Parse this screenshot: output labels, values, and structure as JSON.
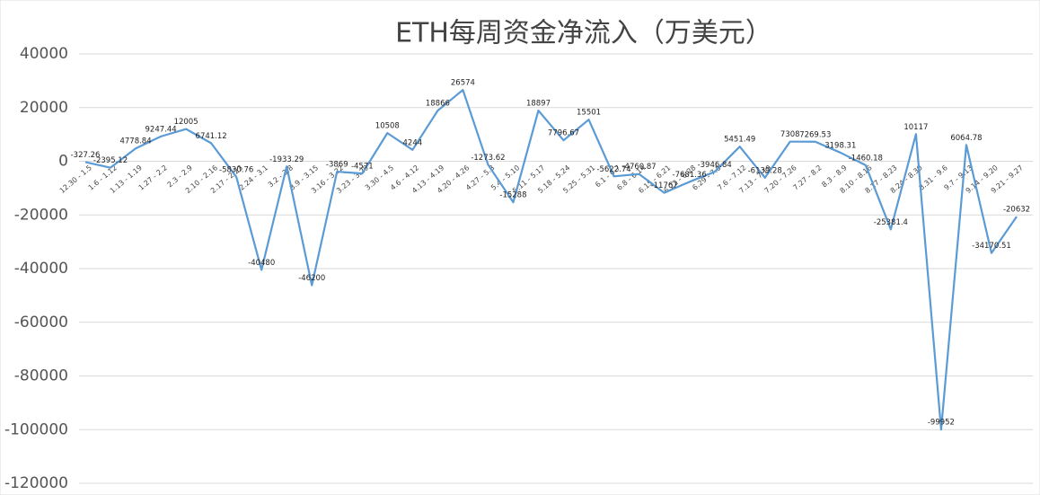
{
  "chart_data": {
    "type": "line",
    "title": "ETH每周资金净流入（万美元）",
    "categories": [
      "12.30 - 1.5",
      "1.6 - 1.12",
      "1.13 - 1.19",
      "1.27 - 2.2",
      "2.3 - 2.9",
      "2.10 - 2.16",
      "2.17 - 2.23",
      "2.24 - 3.1",
      "3.2 - 3.8",
      "3.9 - 3.15",
      "3.16 - 3.22",
      "3.23 - 3.29",
      "3.30 - 4.5",
      "4.6 - 4.12",
      "4.13 - 4.19",
      "4.20 - 4.26",
      "4.27 - 5.3",
      "5.4 - 5.10",
      "5.11 - 5.17",
      "5.18 - 5.24",
      "5.25 - 5.31",
      "6.1 - 6.7",
      "6.8 - 6.14",
      "6.15 - 6.21",
      "6.22 - 6.28",
      "6.29 - 7.5",
      "7.6 - 7.12",
      "7.13 - 7.19",
      "7.20 - 7.26",
      "7.27 - 8.2",
      "8.3 - 8.9",
      "8.10 - 8.16",
      "8.17 - 8.23",
      "8.24 - 8.30",
      "8.31 - 9.6",
      "9.7 - 9.13",
      "9.14 - 9.20",
      "9.21 - 9.27"
    ],
    "values": [
      -327.26,
      -2395.12,
      4778.84,
      9247.44,
      12005,
      6741.12,
      -5830.76,
      -40480,
      -1933.29,
      -46200,
      -3869,
      -4571,
      10508,
      4244,
      18866,
      26574,
      -1273.62,
      -15288,
      18897,
      7796.67,
      15501,
      -5622.74,
      -4760.87,
      -11767,
      -7681.36,
      -3946.84,
      5451.49,
      -6139.28,
      7308,
      7269.53,
      3198.31,
      -1460.18,
      -25381.4,
      10117,
      -99952,
      6064.78,
      -34170.51,
      -20632
    ],
    "color": "#5b9bd5",
    "ylim": [
      -120000,
      40000
    ],
    "yticks": [
      -120000,
      -100000,
      -80000,
      -60000,
      -40000,
      -20000,
      0,
      20000,
      40000
    ],
    "grid": true
  }
}
